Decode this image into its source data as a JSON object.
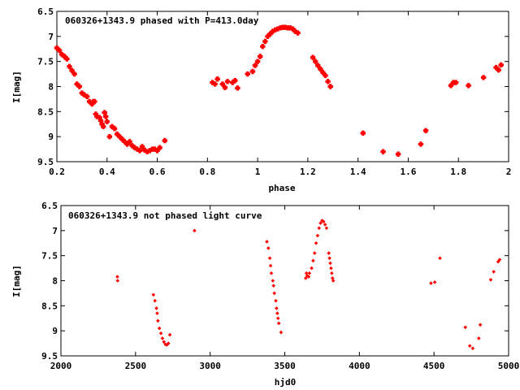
{
  "chart_data": [
    {
      "type": "scatter",
      "title": "060326+1343.9 phased with P=413.0day",
      "xlabel": "phase",
      "ylabel": "I[mag]",
      "xlim": [
        0.2,
        2.0
      ],
      "ylim": [
        9.5,
        6.5
      ],
      "y_inverted": true,
      "grid": false,
      "legend": "none",
      "marker_color": "#ff0000",
      "marker": "large-cross",
      "xticks": [
        "0.2",
        "0.4",
        "0.6",
        "0.8",
        "1",
        "1.2",
        "1.4",
        "1.6",
        "1.8",
        "2"
      ],
      "yticks": [
        "6.5",
        "7",
        "7.5",
        "8",
        "8.5",
        "9",
        "9.5"
      ],
      "series": [
        {
          "points": [
            [
              0.2,
              7.23
            ],
            [
              0.21,
              7.28
            ],
            [
              0.22,
              7.36
            ],
            [
              0.23,
              7.4
            ],
            [
              0.24,
              7.45
            ],
            [
              0.25,
              7.6
            ],
            [
              0.26,
              7.68
            ],
            [
              0.27,
              7.75
            ],
            [
              0.28,
              7.95
            ],
            [
              0.29,
              8.0
            ],
            [
              0.3,
              8.13
            ],
            [
              0.31,
              8.17
            ],
            [
              0.32,
              8.2
            ],
            [
              0.33,
              8.3
            ],
            [
              0.34,
              8.35
            ],
            [
              0.345,
              8.3
            ],
            [
              0.35,
              8.3
            ],
            [
              0.355,
              8.55
            ],
            [
              0.36,
              8.6
            ],
            [
              0.37,
              8.62
            ],
            [
              0.375,
              8.68
            ],
            [
              0.38,
              8.75
            ],
            [
              0.385,
              8.8
            ],
            [
              0.39,
              8.52
            ],
            [
              0.395,
              8.6
            ],
            [
              0.4,
              8.7
            ],
            [
              0.41,
              9.0
            ],
            [
              0.42,
              8.8
            ],
            [
              0.43,
              8.84
            ],
            [
              0.44,
              8.95
            ],
            [
              0.45,
              9.0
            ],
            [
              0.46,
              9.05
            ],
            [
              0.47,
              9.1
            ],
            [
              0.48,
              9.15
            ],
            [
              0.49,
              9.1
            ],
            [
              0.5,
              9.18
            ],
            [
              0.51,
              9.22
            ],
            [
              0.52,
              9.25
            ],
            [
              0.53,
              9.28
            ],
            [
              0.54,
              9.2
            ],
            [
              0.55,
              9.27
            ],
            [
              0.56,
              9.3
            ],
            [
              0.57,
              9.28
            ],
            [
              0.58,
              9.25
            ],
            [
              0.59,
              9.25
            ],
            [
              0.6,
              9.28
            ],
            [
              0.61,
              9.22
            ],
            [
              0.63,
              9.08
            ],
            [
              0.82,
              7.92
            ],
            [
              0.83,
              7.95
            ],
            [
              0.84,
              7.85
            ],
            [
              0.86,
              7.95
            ],
            [
              0.87,
              8.02
            ],
            [
              0.88,
              7.9
            ],
            [
              0.9,
              7.92
            ],
            [
              0.91,
              7.88
            ],
            [
              0.92,
              8.03
            ],
            [
              0.96,
              7.75
            ],
            [
              0.98,
              7.7
            ],
            [
              0.99,
              7.58
            ],
            [
              1.0,
              7.5
            ],
            [
              1.01,
              7.4
            ],
            [
              1.02,
              7.2
            ],
            [
              1.03,
              7.1
            ],
            [
              1.04,
              7.0
            ],
            [
              1.05,
              6.95
            ],
            [
              1.06,
              6.9
            ],
            [
              1.07,
              6.87
            ],
            [
              1.08,
              6.85
            ],
            [
              1.09,
              6.83
            ],
            [
              1.1,
              6.82
            ],
            [
              1.11,
              6.82
            ],
            [
              1.12,
              6.83
            ],
            [
              1.13,
              6.83
            ],
            [
              1.14,
              6.85
            ],
            [
              1.15,
              6.9
            ],
            [
              1.16,
              6.93
            ],
            [
              1.22,
              7.42
            ],
            [
              1.23,
              7.5
            ],
            [
              1.24,
              7.58
            ],
            [
              1.25,
              7.65
            ],
            [
              1.26,
              7.72
            ],
            [
              1.27,
              7.78
            ],
            [
              1.28,
              7.9
            ],
            [
              1.29,
              8.0
            ],
            [
              1.42,
              8.93
            ],
            [
              1.5,
              9.3
            ],
            [
              1.56,
              9.35
            ],
            [
              1.65,
              9.15
            ],
            [
              1.67,
              8.88
            ],
            [
              1.77,
              7.98
            ],
            [
              1.78,
              7.92
            ],
            [
              1.79,
              7.92
            ],
            [
              1.84,
              7.98
            ],
            [
              1.9,
              7.82
            ],
            [
              1.95,
              7.62
            ],
            [
              1.96,
              7.67
            ],
            [
              1.97,
              7.57
            ]
          ]
        }
      ]
    },
    {
      "type": "scatter",
      "title": "060326+1343.9 not phased light curve",
      "xlabel": "hjd0",
      "ylabel": "I[mag]",
      "xlim": [
        2000,
        5000
      ],
      "ylim": [
        9.5,
        6.5
      ],
      "y_inverted": true,
      "grid": false,
      "legend": "none",
      "marker_color": "#ff0000",
      "marker": "small-diamond",
      "xticks": [
        "2000",
        "2500",
        "3000",
        "3500",
        "4000",
        "4500",
        "5000"
      ],
      "yticks": [
        "6.5",
        "7",
        "7.5",
        "8",
        "8.5",
        "9",
        "9.5"
      ],
      "series": [
        {
          "points": [
            [
              2378,
              7.92
            ],
            [
              2380,
              8.0
            ],
            [
              2620,
              8.28
            ],
            [
              2630,
              8.4
            ],
            [
              2640,
              8.55
            ],
            [
              2645,
              8.65
            ],
            [
              2650,
              8.8
            ],
            [
              2660,
              8.95
            ],
            [
              2670,
              9.05
            ],
            [
              2680,
              9.15
            ],
            [
              2690,
              9.22
            ],
            [
              2700,
              9.27
            ],
            [
              2710,
              9.28
            ],
            [
              2720,
              9.25
            ],
            [
              2730,
              9.08
            ],
            [
              2895,
              7.0
            ],
            [
              3380,
              7.22
            ],
            [
              3390,
              7.35
            ],
            [
              3400,
              7.55
            ],
            [
              3405,
              7.7
            ],
            [
              3410,
              7.85
            ],
            [
              3420,
              8.0
            ],
            [
              3425,
              8.1
            ],
            [
              3430,
              8.25
            ],
            [
              3440,
              8.4
            ],
            [
              3445,
              8.55
            ],
            [
              3450,
              8.65
            ],
            [
              3455,
              8.75
            ],
            [
              3460,
              8.85
            ],
            [
              3475,
              9.03
            ],
            [
              3640,
              7.95
            ],
            [
              3645,
              7.85
            ],
            [
              3650,
              7.9
            ],
            [
              3660,
              7.92
            ],
            [
              3665,
              7.85
            ],
            [
              3680,
              7.75
            ],
            [
              3690,
              7.6
            ],
            [
              3700,
              7.45
            ],
            [
              3710,
              7.25
            ],
            [
              3720,
              7.1
            ],
            [
              3730,
              6.95
            ],
            [
              3740,
              6.85
            ],
            [
              3750,
              6.8
            ],
            [
              3760,
              6.82
            ],
            [
              3770,
              6.88
            ],
            [
              3780,
              6.95
            ],
            [
              3795,
              7.45
            ],
            [
              3800,
              7.55
            ],
            [
              3805,
              7.65
            ],
            [
              3810,
              7.75
            ],
            [
              3815,
              7.85
            ],
            [
              3820,
              7.95
            ],
            [
              3825,
              8.0
            ],
            [
              4480,
              8.05
            ],
            [
              4505,
              8.03
            ],
            [
              4540,
              7.55
            ],
            [
              4710,
              8.93
            ],
            [
              4740,
              9.3
            ],
            [
              4760,
              9.35
            ],
            [
              4800,
              9.15
            ],
            [
              4810,
              8.88
            ],
            [
              4880,
              7.98
            ],
            [
              4900,
              7.82
            ],
            [
              4930,
              7.62
            ],
            [
              4940,
              7.58
            ]
          ]
        }
      ]
    }
  ]
}
